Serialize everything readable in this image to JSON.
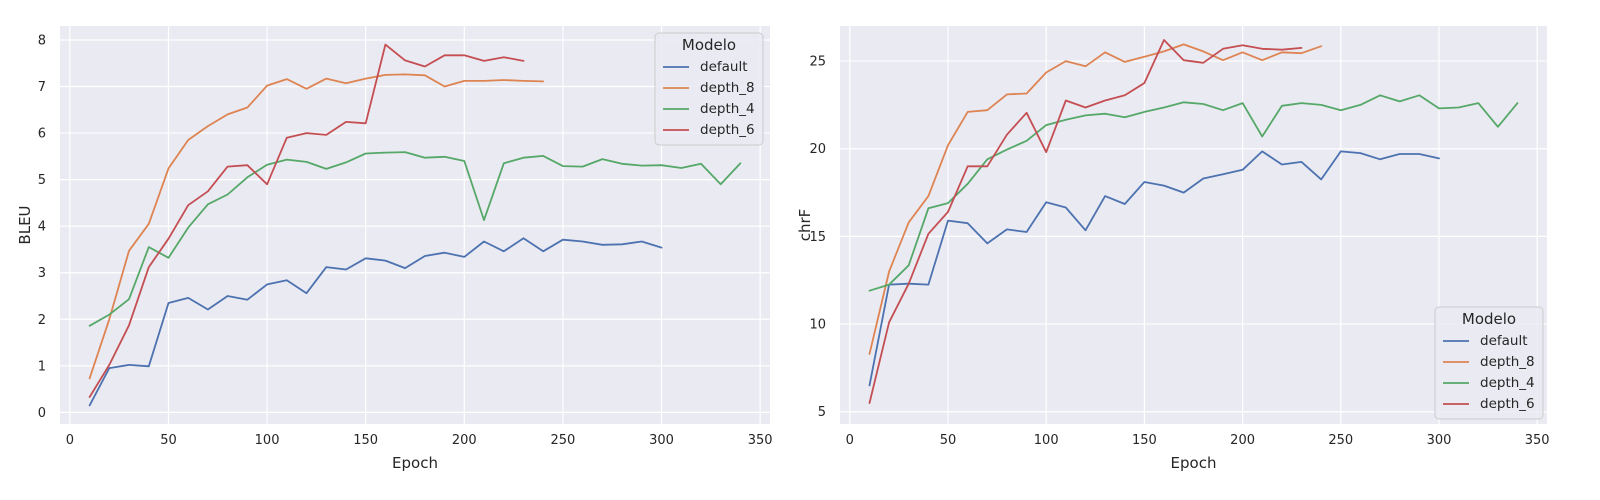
{
  "chart_data": [
    {
      "type": "line",
      "xlabel": "Epoch",
      "ylabel": "BLEU",
      "xlim": [
        -5,
        355
      ],
      "ylim": [
        -0.25,
        8.3
      ],
      "xticks": [
        0,
        50,
        100,
        150,
        200,
        250,
        300,
        350
      ],
      "yticks": [
        0,
        1,
        2,
        3,
        4,
        5,
        6,
        7,
        8
      ],
      "grid": true,
      "legend": {
        "title": "Modelo",
        "position": "top-right"
      },
      "series": [
        {
          "name": "default",
          "color": "#4c72b0",
          "x": [
            10,
            20,
            30,
            40,
            50,
            60,
            70,
            80,
            90,
            100,
            110,
            120,
            130,
            140,
            150,
            160,
            170,
            180,
            190,
            200,
            210,
            220,
            230,
            240,
            250,
            260,
            270,
            280,
            290,
            300
          ],
          "y": [
            0.15,
            0.95,
            1.02,
            0.99,
            2.35,
            2.46,
            2.21,
            2.5,
            2.42,
            2.75,
            2.84,
            2.56,
            3.12,
            3.07,
            3.31,
            3.26,
            3.1,
            3.36,
            3.43,
            3.34,
            3.67,
            3.46,
            3.74,
            3.46,
            3.71,
            3.67,
            3.6,
            3.61,
            3.67,
            3.54
          ]
        },
        {
          "name": "depth_8",
          "color": "#dd8452",
          "x": [
            10,
            20,
            30,
            40,
            50,
            60,
            70,
            80,
            90,
            100,
            110,
            120,
            130,
            140,
            150,
            160,
            170,
            180,
            190,
            200,
            210,
            220,
            230,
            240
          ],
          "y": [
            0.73,
            2.0,
            3.47,
            4.05,
            5.24,
            5.85,
            6.15,
            6.4,
            6.55,
            7.02,
            7.16,
            6.95,
            7.17,
            7.07,
            7.17,
            7.25,
            7.26,
            7.24,
            7.0,
            7.12,
            7.12,
            7.14,
            7.12,
            7.11
          ]
        },
        {
          "name": "depth_4",
          "color": "#55a868",
          "x": [
            10,
            20,
            30,
            40,
            50,
            60,
            70,
            80,
            90,
            100,
            110,
            120,
            130,
            140,
            150,
            160,
            170,
            180,
            190,
            200,
            210,
            220,
            230,
            240,
            250,
            260,
            270,
            280,
            290,
            300,
            310,
            320,
            330,
            340
          ],
          "y": [
            1.86,
            2.1,
            2.43,
            3.55,
            3.32,
            3.97,
            4.47,
            4.68,
            5.05,
            5.32,
            5.43,
            5.38,
            5.23,
            5.37,
            5.56,
            5.58,
            5.59,
            5.47,
            5.49,
            5.4,
            4.13,
            5.35,
            5.47,
            5.51,
            5.29,
            5.28,
            5.44,
            5.34,
            5.3,
            5.31,
            5.25,
            5.34,
            4.9,
            5.35
          ]
        },
        {
          "name": "depth_6",
          "color": "#c44e52",
          "x": [
            10,
            20,
            30,
            40,
            50,
            60,
            70,
            80,
            90,
            100,
            110,
            120,
            130,
            140,
            150,
            160,
            170,
            180,
            190,
            200,
            210,
            220,
            230
          ],
          "y": [
            0.33,
            1.02,
            1.87,
            3.12,
            3.73,
            4.45,
            4.75,
            5.28,
            5.31,
            4.9,
            5.9,
            6.0,
            5.96,
            6.24,
            6.21,
            7.9,
            7.56,
            7.43,
            7.67,
            7.67,
            7.55,
            7.63,
            7.55
          ]
        }
      ]
    },
    {
      "type": "line",
      "xlabel": "Epoch",
      "ylabel": "chrF",
      "xlim": [
        -5,
        355
      ],
      "ylim": [
        4.3,
        27.0
      ],
      "xticks": [
        0,
        50,
        100,
        150,
        200,
        250,
        300,
        350
      ],
      "yticks": [
        5,
        10,
        15,
        20,
        25
      ],
      "grid": true,
      "legend": {
        "title": "Modelo",
        "position": "bottom-right"
      },
      "series": [
        {
          "name": "default",
          "color": "#4c72b0",
          "x": [
            10,
            20,
            30,
            40,
            50,
            60,
            70,
            80,
            90,
            100,
            110,
            120,
            130,
            140,
            150,
            160,
            170,
            180,
            190,
            200,
            210,
            220,
            230,
            240,
            250,
            260,
            270,
            280,
            290,
            300
          ],
          "y": [
            6.5,
            12.25,
            12.3,
            12.25,
            15.9,
            15.75,
            14.6,
            15.4,
            15.25,
            16.95,
            16.65,
            15.35,
            17.3,
            16.85,
            18.1,
            17.9,
            17.5,
            18.3,
            18.55,
            18.8,
            19.85,
            19.1,
            19.25,
            18.25,
            19.85,
            19.75,
            19.4,
            19.7,
            19.7,
            19.45
          ]
        },
        {
          "name": "depth_8",
          "color": "#dd8452",
          "x": [
            10,
            20,
            30,
            40,
            50,
            60,
            70,
            80,
            90,
            100,
            110,
            120,
            130,
            140,
            150,
            160,
            170,
            180,
            190,
            200,
            210,
            220,
            230,
            240
          ],
          "y": [
            8.3,
            13.0,
            15.8,
            17.3,
            20.2,
            22.1,
            22.2,
            23.1,
            23.15,
            24.35,
            25.0,
            24.7,
            25.5,
            24.95,
            25.25,
            25.55,
            25.95,
            25.55,
            25.05,
            25.5,
            25.05,
            25.5,
            25.45,
            25.85
          ]
        },
        {
          "name": "depth_4",
          "color": "#55a868",
          "x": [
            10,
            20,
            30,
            40,
            50,
            60,
            70,
            80,
            90,
            100,
            110,
            120,
            130,
            140,
            150,
            160,
            170,
            180,
            190,
            200,
            210,
            220,
            230,
            240,
            250,
            260,
            270,
            280,
            290,
            300,
            310,
            320,
            330,
            340
          ],
          "y": [
            11.9,
            12.25,
            13.35,
            16.6,
            16.9,
            18.0,
            19.4,
            19.95,
            20.45,
            21.35,
            21.65,
            21.9,
            22.0,
            21.8,
            22.1,
            22.35,
            22.65,
            22.55,
            22.2,
            22.6,
            20.7,
            22.45,
            22.6,
            22.5,
            22.2,
            22.5,
            23.05,
            22.7,
            23.05,
            22.3,
            22.35,
            22.6,
            21.25,
            22.6
          ]
        },
        {
          "name": "depth_6",
          "color": "#c44e52",
          "x": [
            10,
            20,
            30,
            40,
            50,
            60,
            70,
            80,
            90,
            100,
            110,
            120,
            130,
            140,
            150,
            160,
            170,
            180,
            190,
            200,
            210,
            220,
            230
          ],
          "y": [
            5.5,
            10.1,
            12.3,
            15.15,
            16.4,
            19.0,
            19.0,
            20.8,
            22.05,
            19.8,
            22.75,
            22.35,
            22.75,
            23.05,
            23.75,
            26.2,
            25.05,
            24.9,
            25.7,
            25.9,
            25.7,
            25.65,
            25.75
          ]
        }
      ]
    }
  ]
}
